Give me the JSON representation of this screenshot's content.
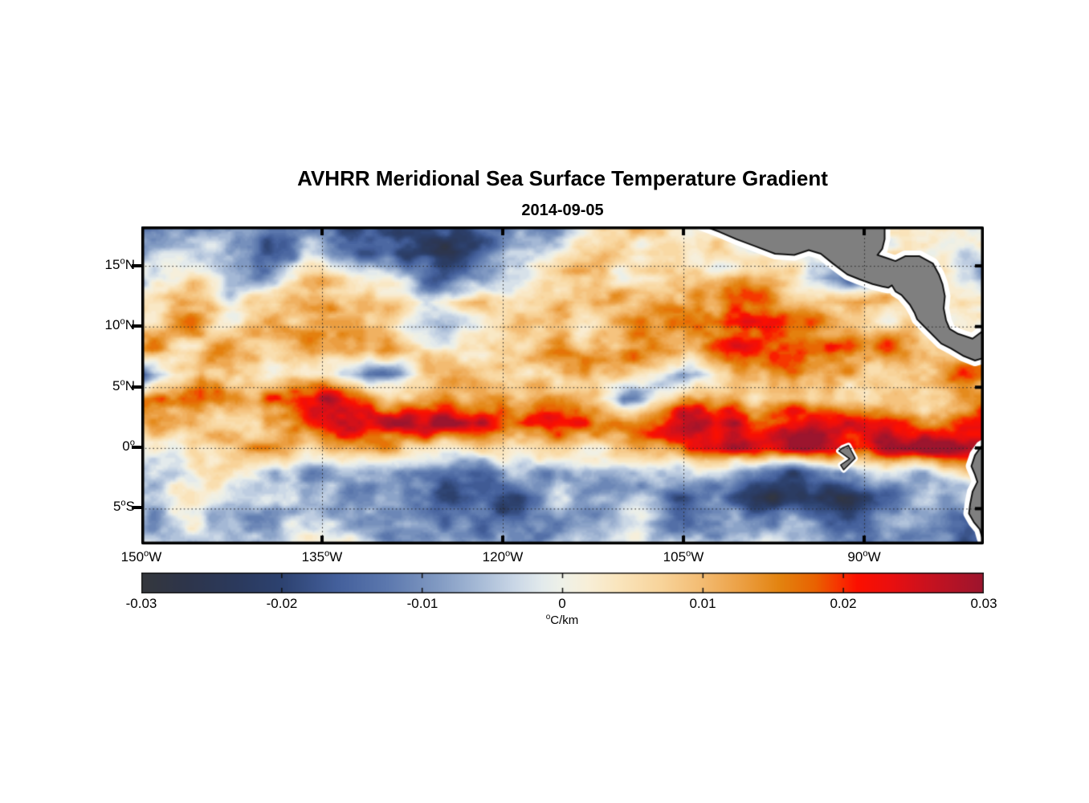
{
  "chart_data": {
    "type": "heatmap",
    "title": "AVHRR Meridional Sea Surface Temperature Gradient",
    "subtitle": "2014-09-05",
    "colorbar_unit": "°C/km",
    "region": "eastern tropical Pacific, 150°W–80°W, 8°S–18°N",
    "lon_range": [
      -150,
      -80.07
    ],
    "lat_range": [
      -7.95,
      18.25
    ],
    "grid_lines": "dotted",
    "x_ticks": [
      {
        "label": "150°W",
        "lon": -150
      },
      {
        "label": "135°W",
        "lon": -135
      },
      {
        "label": "120°W",
        "lon": -120
      },
      {
        "label": "105°W",
        "lon": -105
      },
      {
        "label": "90°W",
        "lon": -90
      }
    ],
    "y_ticks": [
      {
        "label": "15°N",
        "lat": 15
      },
      {
        "label": "10°N",
        "lat": 10
      },
      {
        "label": "5°N",
        "lat": 5
      },
      {
        "label": "0°",
        "lat": 0
      },
      {
        "label": "5°S",
        "lat": -5
      }
    ],
    "colorbar": {
      "min": -0.03,
      "max": 0.03,
      "tick_values": [
        -0.03,
        -0.02,
        -0.01,
        0,
        0.01,
        0.02,
        0.03
      ],
      "tick_labels": [
        "-0.03",
        "-0.02",
        "-0.01",
        "0",
        "0.01",
        "0.02",
        "0.03"
      ]
    },
    "colormap": [
      [
        -0.03,
        "#35383d"
      ],
      [
        -0.027,
        "#2e354a"
      ],
      [
        -0.023,
        "#2b3a5e"
      ],
      [
        -0.02,
        "#2d4270"
      ],
      [
        -0.016,
        "#44609c"
      ],
      [
        -0.0125,
        "#5c78ae"
      ],
      [
        -0.009,
        "#8099c2"
      ],
      [
        -0.006,
        "#a6bad6"
      ],
      [
        -0.0035,
        "#c9d6e6"
      ],
      [
        -0.0015,
        "#e2eaec"
      ],
      [
        0.0,
        "#eff1e8"
      ],
      [
        0.0018,
        "#f8efd8"
      ],
      [
        0.004,
        "#fae5bd"
      ],
      [
        0.007,
        "#f8d49b"
      ],
      [
        0.01,
        "#f3bb71"
      ],
      [
        0.013,
        "#eb9d3f"
      ],
      [
        0.0155,
        "#e3830f"
      ],
      [
        0.018,
        "#e96201"
      ],
      [
        0.0195,
        "#f63800"
      ],
      [
        0.021,
        "#fc0f00"
      ],
      [
        0.0235,
        "#e90f10"
      ],
      [
        0.026,
        "#c9121f"
      ],
      [
        0.03,
        "#9c152e"
      ]
    ],
    "field_grid": {
      "units": "°C/km",
      "lons": [
        -150,
        -145,
        -140,
        -135,
        -130,
        -125,
        -120,
        -115,
        -110,
        -105,
        -100,
        -95,
        -90,
        -85,
        -80
      ],
      "lats": [
        18,
        16,
        14,
        12,
        10,
        8,
        6,
        4,
        2,
        0,
        -2,
        -4,
        -6,
        -8
      ],
      "values": [
        [
          -0.012,
          -0.005,
          -0.009,
          -0.012,
          -0.018,
          -0.02,
          -0.015,
          -0.004,
          0.01,
          0.0,
          0.0,
          0.0,
          0.0,
          0.008,
          0.003
        ],
        [
          -0.01,
          -0.004,
          -0.015,
          -0.008,
          -0.02,
          -0.022,
          -0.012,
          0.005,
          0.01,
          0.004,
          0.0,
          0.0,
          0.0,
          0.005,
          -0.004
        ],
        [
          -0.006,
          0.004,
          -0.012,
          0.006,
          -0.004,
          -0.014,
          -0.012,
          0.008,
          0.006,
          0.01,
          0.012,
          0.0,
          -0.018,
          0.01,
          -0.005
        ],
        [
          0.005,
          0.008,
          0.006,
          0.01,
          0.008,
          0.004,
          0.006,
          0.01,
          0.012,
          0.008,
          0.014,
          0.01,
          0.012,
          0.0,
          0.008
        ],
        [
          0.006,
          0.01,
          0.008,
          0.012,
          0.006,
          -0.005,
          0.008,
          0.006,
          0.01,
          0.015,
          0.018,
          0.013,
          0.012,
          0.008,
          0.0
        ],
        [
          0.01,
          0.013,
          0.009,
          0.008,
          0.011,
          0.008,
          0.009,
          0.013,
          0.015,
          0.011,
          0.016,
          0.014,
          0.013,
          0.01,
          0.006
        ],
        [
          -0.016,
          0.012,
          0.008,
          0.004,
          -0.008,
          0.006,
          0.004,
          0.008,
          0.006,
          -0.014,
          0.01,
          0.008,
          0.01,
          0.012,
          0.014
        ],
        [
          0.019,
          0.012,
          0.017,
          0.024,
          0.014,
          0.01,
          0.014,
          0.021,
          -0.014,
          0.019,
          0.014,
          0.01,
          0.008,
          0.01,
          0.012
        ],
        [
          0.008,
          0.014,
          0.01,
          0.019,
          0.021,
          0.027,
          0.024,
          0.019,
          0.014,
          0.024,
          0.027,
          0.024,
          0.019,
          0.014,
          0.019
        ],
        [
          0.004,
          0.006,
          0.011,
          0.008,
          0.014,
          0.006,
          0.008,
          0.006,
          0.008,
          0.017,
          0.021,
          0.027,
          0.024,
          0.029,
          0.027
        ],
        [
          -0.004,
          0.004,
          -0.006,
          -0.008,
          -0.005,
          -0.011,
          -0.008,
          -0.005,
          -0.009,
          -0.008,
          -0.011,
          -0.014,
          -0.01,
          -0.005,
          0.014
        ],
        [
          -0.002,
          0.0,
          -0.004,
          -0.006,
          -0.009,
          -0.014,
          -0.016,
          -0.008,
          -0.009,
          -0.014,
          -0.019,
          -0.021,
          -0.017,
          -0.014,
          -0.011
        ],
        [
          -0.005,
          -0.004,
          -0.006,
          -0.004,
          -0.008,
          -0.011,
          -0.014,
          -0.006,
          -0.004,
          -0.008,
          -0.009,
          -0.011,
          -0.013,
          -0.009,
          -0.014
        ],
        [
          -0.004,
          -0.002,
          -0.004,
          -0.002,
          -0.004,
          -0.007,
          -0.009,
          -0.004,
          -0.002,
          -0.004,
          -0.006,
          -0.007,
          -0.009,
          -0.011,
          -0.014
        ]
      ]
    },
    "land": {
      "fill": "#7f7f7f",
      "outline": "#111111",
      "halo": "#ffffff",
      "regions": [
        {
          "name": "central-america",
          "points": [
            [
              -103.6,
              18.4
            ],
            [
              -102.0,
              17.8
            ],
            [
              -100.6,
              17.2
            ],
            [
              -99.0,
              16.6
            ],
            [
              -97.4,
              16.0
            ],
            [
              -95.8,
              15.9
            ],
            [
              -94.6,
              16.3
            ],
            [
              -93.6,
              16.0
            ],
            [
              -92.6,
              15.2
            ],
            [
              -91.4,
              14.3
            ],
            [
              -90.4,
              13.9
            ],
            [
              -89.3,
              13.5
            ],
            [
              -88.5,
              13.3
            ],
            [
              -88.0,
              13.2
            ],
            [
              -87.7,
              13.4
            ],
            [
              -87.4,
              12.9
            ],
            [
              -86.9,
              12.6
            ],
            [
              -86.2,
              11.8
            ],
            [
              -85.8,
              11.1
            ],
            [
              -85.6,
              10.6
            ],
            [
              -85.2,
              10.2
            ],
            [
              -84.9,
              9.9
            ],
            [
              -84.5,
              9.5
            ],
            [
              -83.6,
              8.6
            ],
            [
              -82.8,
              8.2
            ],
            [
              -81.8,
              7.6
            ],
            [
              -80.8,
              7.2
            ],
            [
              -79.8,
              7.5
            ],
            [
              -79.8,
              9.9
            ],
            [
              -81.0,
              9.0
            ],
            [
              -82.2,
              9.4
            ],
            [
              -82.9,
              9.8
            ],
            [
              -83.2,
              10.5
            ],
            [
              -83.4,
              11.5
            ],
            [
              -83.3,
              12.5
            ],
            [
              -83.5,
              13.5
            ],
            [
              -83.8,
              14.3
            ],
            [
              -84.3,
              15.2
            ],
            [
              -85.4,
              15.8
            ],
            [
              -86.6,
              15.8
            ],
            [
              -87.4,
              15.4
            ],
            [
              -88.0,
              15.6
            ],
            [
              -88.9,
              15.9
            ],
            [
              -88.5,
              16.4
            ],
            [
              -88.3,
              17.2
            ],
            [
              -88.3,
              18.4
            ]
          ]
        },
        {
          "name": "south-america",
          "points": [
            [
              -79.8,
              0.4
            ],
            [
              -80.3,
              0.1
            ],
            [
              -80.8,
              -0.6
            ],
            [
              -81.1,
              -1.5
            ],
            [
              -80.8,
              -2.2
            ],
            [
              -80.6,
              -2.8
            ],
            [
              -81.0,
              -3.6
            ],
            [
              -81.2,
              -4.6
            ],
            [
              -81.3,
              -5.4
            ],
            [
              -80.9,
              -6.1
            ],
            [
              -80.4,
              -6.7
            ],
            [
              -80.2,
              -7.4
            ],
            [
              -79.8,
              -8.4
            ]
          ]
        },
        {
          "name": "galapagos-islands",
          "points": [
            [
              -91.8,
              0.0
            ],
            [
              -91.3,
              0.2
            ],
            [
              -90.75,
              -0.85
            ],
            [
              -91.7,
              -1.8
            ],
            [
              -91.95,
              -1.4
            ],
            [
              -91.2,
              -0.9
            ],
            [
              -92.1,
              -0.25
            ]
          ]
        }
      ]
    },
    "features": [
      "Strong positive (red) meridional SST-gradient band along 0-5N (north equatorial front, tropical instability waves), most intense 128-115W and 105W to the coast",
      "Negative (blue) band south of the equator, strongest 3-6S east of 105W",
      "Scattered positive mesoscale anomalies 5-12N east of 110W",
      "Dark slate negative patches 14-18N near 148W, 131-124W and 122-117W",
      "Weak mottled background of about +/-0.005 C/km elsewhere"
    ]
  }
}
